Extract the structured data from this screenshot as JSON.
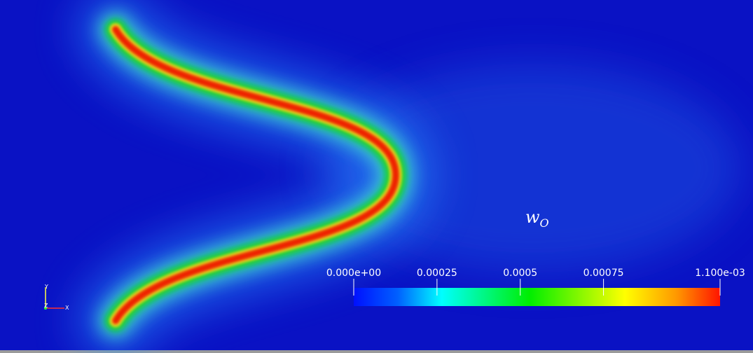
{
  "field_label": {
    "base": "w",
    "subscript": "O"
  },
  "colorbar": {
    "range": [
      0,
      0.0011
    ],
    "ticks": [
      {
        "value": 0,
        "label": "0.000e+00"
      },
      0.00025,
      0.0005,
      0.00075,
      {
        "value": 0.0011,
        "label": "1.100e-03"
      }
    ]
  },
  "axes_triad": {
    "y": "Y",
    "z": "Z",
    "x": "X"
  }
}
